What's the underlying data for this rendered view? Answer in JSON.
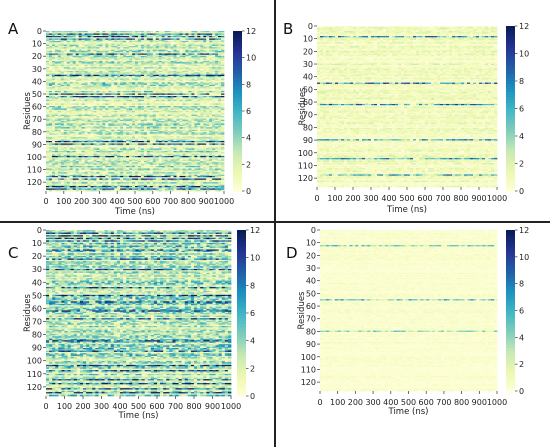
{
  "colormap": [
    "#ffffd9",
    "#edf8b1",
    "#c7e9b4",
    "#7fcdbb",
    "#41b6c4",
    "#1d91c0",
    "#225ea8",
    "#253494",
    "#081d58"
  ],
  "divider_color": "#222222",
  "chart_data": [
    {
      "type": "heatmap",
      "panel_label": "A",
      "xlabel": "Time (ns)",
      "ylabel": "Residues",
      "x_ticks": [
        0,
        100,
        200,
        300,
        400,
        500,
        600,
        700,
        800,
        900,
        1000
      ],
      "y_ticks": [
        0,
        10,
        20,
        30,
        40,
        50,
        60,
        70,
        80,
        90,
        100,
        110,
        120
      ],
      "xlim": [
        0,
        1000
      ],
      "ylim": [
        0,
        127
      ],
      "colorbar": {
        "min": 0,
        "max": 12,
        "ticks": [
          0,
          2,
          4,
          6,
          8,
          10,
          12
        ]
      },
      "mean_level": 2.6,
      "hot_residues": [
        2,
        4,
        6,
        18,
        35,
        50,
        52,
        88,
        90,
        100,
        116,
        118,
        124,
        126
      ]
    },
    {
      "type": "heatmap",
      "panel_label": "B",
      "xlabel": "Time (ns)",
      "ylabel": "Residues",
      "x_ticks": [
        0,
        100,
        200,
        300,
        400,
        500,
        600,
        700,
        800,
        900,
        1000
      ],
      "y_ticks": [
        0,
        10,
        20,
        30,
        40,
        50,
        60,
        70,
        80,
        90,
        100,
        110,
        120
      ],
      "xlim": [
        0,
        1000
      ],
      "ylim": [
        0,
        127
      ],
      "colorbar": {
        "min": 0,
        "max": 12,
        "ticks": [
          0,
          2,
          4,
          6,
          8,
          10,
          12
        ]
      },
      "mean_level": 1.1,
      "hot_residues": [
        8,
        45,
        62,
        90,
        105,
        118
      ]
    },
    {
      "type": "heatmap",
      "panel_label": "C",
      "xlabel": "Time (ns)",
      "ylabel": "Residues",
      "x_ticks": [
        0,
        100,
        200,
        300,
        400,
        500,
        600,
        700,
        800,
        900,
        1000
      ],
      "y_ticks": [
        0,
        10,
        20,
        30,
        40,
        50,
        60,
        70,
        80,
        90,
        100,
        110,
        120
      ],
      "xlim": [
        0,
        1000
      ],
      "ylim": [
        0,
        127
      ],
      "colorbar": {
        "min": 0,
        "max": 12,
        "ticks": [
          0,
          2,
          4,
          6,
          8,
          10,
          12
        ]
      },
      "mean_level": 3.4,
      "hot_residues": [
        2,
        4,
        6,
        8,
        15,
        22,
        30,
        44,
        50,
        55,
        62,
        68,
        85,
        93,
        104,
        108,
        115,
        118,
        122,
        125
      ]
    },
    {
      "type": "heatmap",
      "panel_label": "D",
      "xlabel": "Time (ns)",
      "ylabel": "Residues",
      "x_ticks": [
        0,
        100,
        200,
        300,
        400,
        500,
        600,
        700,
        800,
        900,
        1000
      ],
      "y_ticks": [
        0,
        10,
        20,
        30,
        40,
        50,
        60,
        70,
        80,
        90,
        100,
        110,
        120
      ],
      "xlim": [
        0,
        1000
      ],
      "ylim": [
        0,
        127
      ],
      "colorbar": {
        "min": 0,
        "max": 12,
        "ticks": [
          0,
          2,
          4,
          6,
          8,
          10,
          12
        ]
      },
      "mean_level": 0.4,
      "hot_residues": [
        12,
        55,
        80
      ]
    }
  ]
}
